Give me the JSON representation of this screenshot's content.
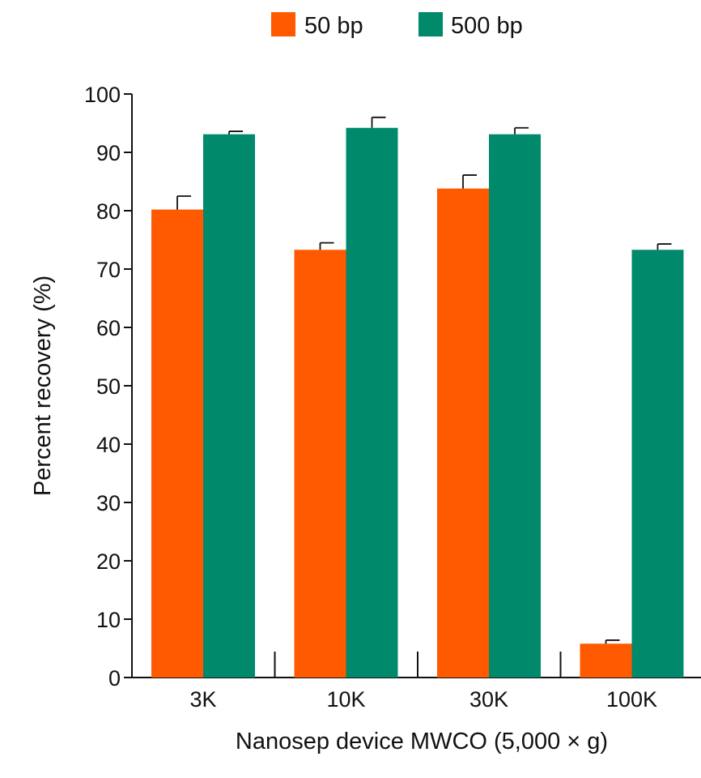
{
  "chart_data": {
    "type": "bar",
    "title": "",
    "xlabel": "Nanosep device MWCO (5,000 × g)",
    "ylabel": "Percent recovery (%)",
    "categories": [
      "3K",
      "10K",
      "30K",
      "100K"
    ],
    "ylim": [
      0,
      100
    ],
    "yticks": [
      0,
      10,
      20,
      30,
      40,
      50,
      60,
      70,
      80,
      90,
      100
    ],
    "grid": false,
    "legend_position": "top-center",
    "series": [
      {
        "name": "50 bp",
        "color": "#ff5a00",
        "values": [
          80.2,
          73.3,
          83.8,
          5.8
        ],
        "errors": [
          2.3,
          1.2,
          2.3,
          0.6
        ]
      },
      {
        "name": "500 bp",
        "color": "#00896b",
        "values": [
          93.1,
          94.2,
          93.1,
          73.3
        ],
        "errors": [
          0.5,
          1.8,
          1.1,
          1.0
        ]
      }
    ]
  }
}
